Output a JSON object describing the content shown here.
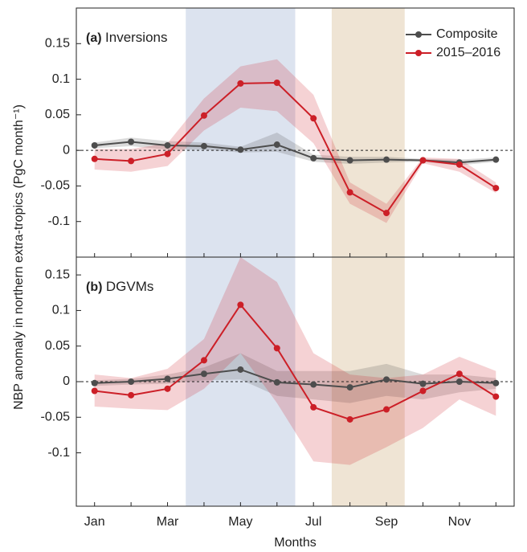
{
  "chart_data": [
    {
      "type": "line",
      "panel_label": "(a)",
      "title": "Inversions",
      "ylabel": "NBP anomaly in northern extra-tropics (PgC month⁻¹)",
      "categories": [
        "Jan",
        null,
        "Mar",
        null,
        "May",
        null,
        "Jul",
        null,
        "Sep",
        null,
        "Nov",
        null
      ],
      "ylim": [
        -0.15,
        0.2
      ],
      "yticks": [
        -0.1,
        -0.05,
        0,
        0.05,
        0.1,
        0.15
      ],
      "zero_line": true,
      "legend": "upper right",
      "shaded_spans": [
        {
          "start": 2.5,
          "end": 5.5,
          "color": "#dce3ef"
        },
        {
          "start": 6.5,
          "end": 8.5,
          "color": "#efe4d4"
        }
      ],
      "series": [
        {
          "name": "Composite",
          "color": "#4d4d4d",
          "values": [
            0.007,
            0.012,
            0.007,
            0.006,
            0.001,
            0.008,
            -0.011,
            -0.014,
            -0.013,
            -0.014,
            -0.017,
            -0.013
          ],
          "lower": [
            0.003,
            0.006,
            0.001,
            0.001,
            -0.003,
            -0.002,
            -0.016,
            -0.019,
            -0.017,
            -0.016,
            -0.021,
            -0.016
          ],
          "upper": [
            0.011,
            0.018,
            0.013,
            0.011,
            0.005,
            0.025,
            -0.006,
            -0.009,
            -0.009,
            -0.012,
            -0.013,
            -0.01
          ]
        },
        {
          "name": "2015–2016",
          "color": "#cc1f27",
          "values": [
            -0.012,
            -0.015,
            -0.005,
            0.049,
            0.094,
            0.095,
            0.045,
            -0.059,
            -0.088,
            -0.014,
            -0.02,
            -0.053
          ],
          "lower": [
            -0.027,
            -0.03,
            -0.022,
            0.028,
            0.06,
            0.055,
            0.01,
            -0.075,
            -0.102,
            -0.018,
            -0.03,
            -0.06
          ],
          "upper": [
            0.002,
            0.002,
            0.01,
            0.073,
            0.118,
            0.128,
            0.078,
            -0.045,
            -0.075,
            -0.01,
            -0.012,
            -0.045
          ]
        }
      ]
    },
    {
      "type": "line",
      "panel_label": "(b)",
      "title": "DGVMs",
      "xlabel": "Months",
      "categories": [
        "Jan",
        null,
        "Mar",
        null,
        "May",
        null,
        "Jul",
        null,
        "Sep",
        null,
        "Nov",
        null
      ],
      "ylim": [
        -0.175,
        0.175
      ],
      "yticks": [
        -0.1,
        -0.05,
        0,
        0.05,
        0.1,
        0.15
      ],
      "zero_line": true,
      "shaded_spans": [
        {
          "start": 2.5,
          "end": 5.5,
          "color": "#dce3ef"
        },
        {
          "start": 6.5,
          "end": 8.5,
          "color": "#efe4d4"
        }
      ],
      "series": [
        {
          "color": "#4d4d4d",
          "values": [
            -0.002,
            0.0,
            0.004,
            0.011,
            0.017,
            -0.001,
            -0.004,
            -0.008,
            0.003,
            -0.003,
            0.0,
            -0.002
          ],
          "lower": [
            -0.006,
            -0.004,
            -0.003,
            0.002,
            0.003,
            -0.02,
            -0.025,
            -0.03,
            -0.02,
            -0.025,
            -0.015,
            -0.01
          ],
          "upper": [
            0.002,
            0.004,
            0.01,
            0.02,
            0.04,
            0.015,
            0.015,
            0.015,
            0.025,
            0.01,
            0.01,
            0.005
          ]
        },
        {
          "color": "#cc1f27",
          "values": [
            -0.013,
            -0.019,
            -0.01,
            0.03,
            0.108,
            0.047,
            -0.036,
            -0.053,
            -0.039,
            -0.013,
            0.011,
            -0.021
          ],
          "lower": [
            -0.035,
            -0.038,
            -0.04,
            -0.01,
            0.04,
            -0.03,
            -0.112,
            -0.117,
            -0.092,
            -0.065,
            -0.025,
            -0.048
          ],
          "upper": [
            0.01,
            0.005,
            0.018,
            0.06,
            0.175,
            0.14,
            0.04,
            0.01,
            0.005,
            0.01,
            0.035,
            0.015
          ]
        }
      ]
    }
  ]
}
